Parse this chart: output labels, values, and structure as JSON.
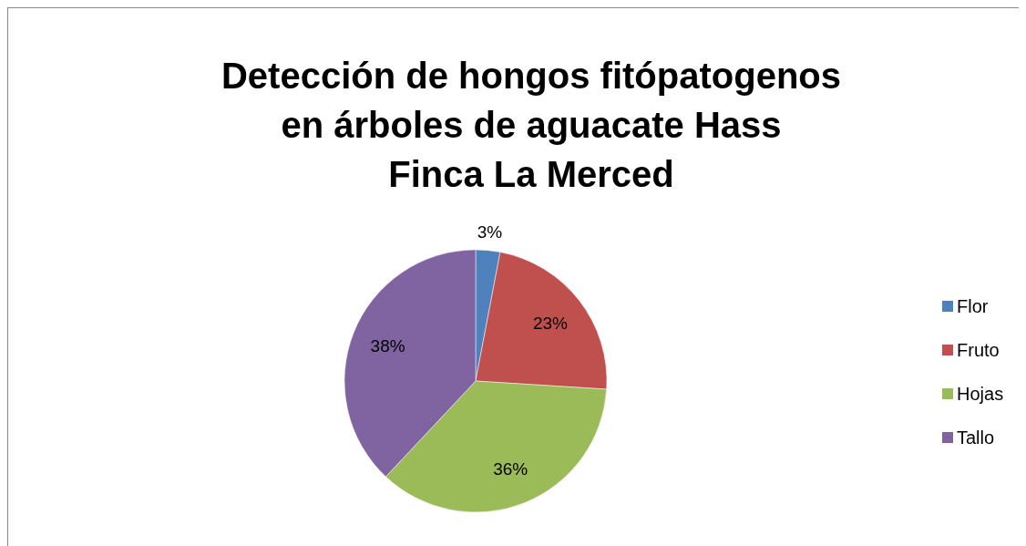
{
  "chart_data": {
    "type": "pie",
    "title": "Detección de hongos fitópatogenos\nen árboles de aguacate Hass\nFinca La Merced",
    "categories": [
      "Flor",
      "Fruto",
      "Hojas",
      "Tallo"
    ],
    "values": [
      3,
      23,
      36,
      38
    ],
    "colors": [
      "#4f81bd",
      "#c0504d",
      "#9bbb59",
      "#8064a2"
    ],
    "value_labels": [
      "3%",
      "23%",
      "36%",
      "38%"
    ],
    "legend": "right"
  }
}
